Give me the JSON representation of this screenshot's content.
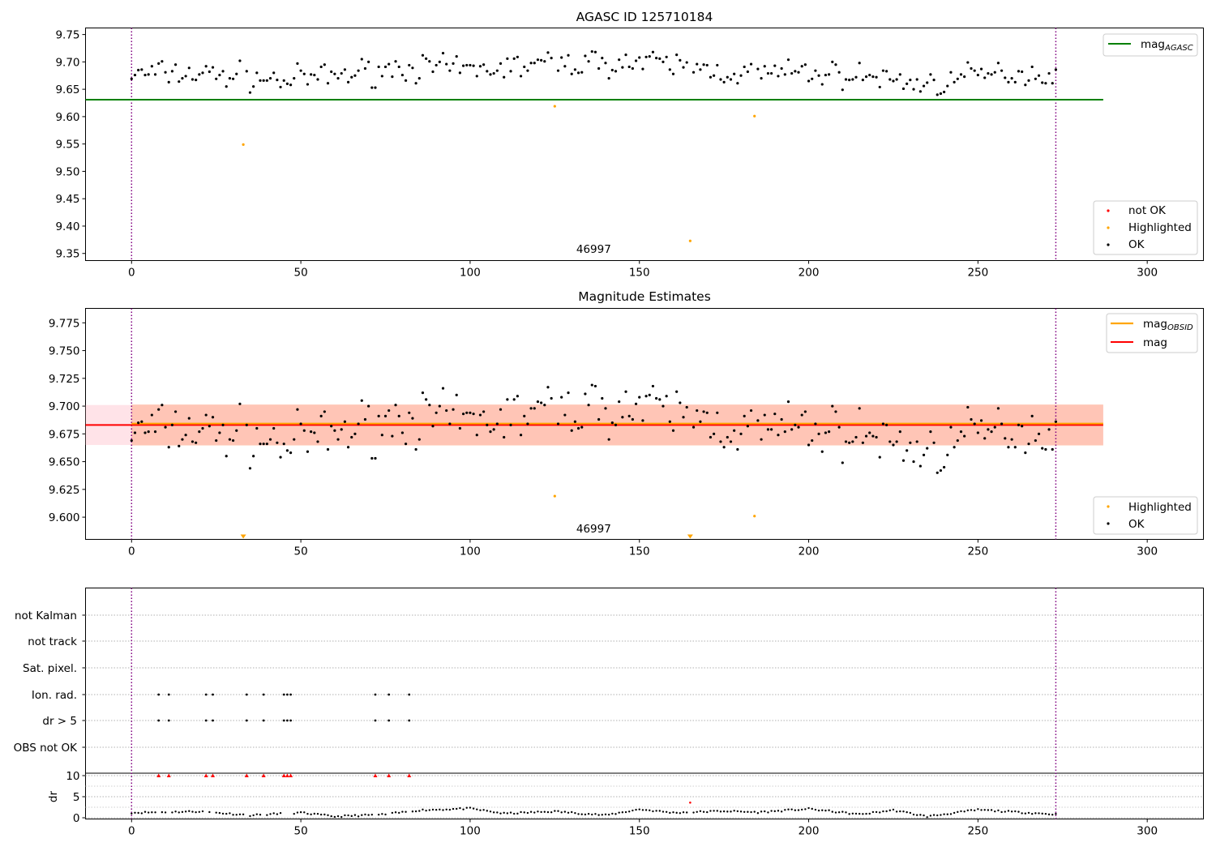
{
  "colors": {
    "ok": "#000000",
    "highlighted": "#ffa500",
    "not_ok": "#ff0000",
    "mag_agasc": "#008000",
    "mag_obsid": "#ffa500",
    "mag": "#ff0000",
    "band_mag": "#ffc0cb",
    "band_obsid": "#ffa07a",
    "obs_boundary": "#800080"
  },
  "chart_data": [
    {
      "type": "scatter",
      "title": "AGASC ID 125710184",
      "xlim": [
        -13.6,
        316.6
      ],
      "ylim": [
        9.337,
        9.762
      ],
      "xticks": [
        0,
        50,
        100,
        150,
        200,
        250,
        300
      ],
      "yticks": [
        9.35,
        9.4,
        9.45,
        9.5,
        9.55,
        9.6,
        9.65,
        9.7,
        9.75
      ],
      "ytick_decimals": 2,
      "obsid_label": "46997",
      "obsid_label_x": 136.5,
      "obs_boundaries": [
        0,
        273
      ],
      "hlines": [
        {
          "name": "mag_AGASC",
          "value": 9.631,
          "xmax": 287,
          "color_key": "mag_agasc"
        }
      ],
      "ok_noise_seed": 7,
      "series": [
        {
          "name": "not OK",
          "color_key": "not_ok",
          "x": [],
          "y": []
        },
        {
          "name": "Highlighted",
          "color_key": "highlighted",
          "x": [
            33,
            125,
            165,
            184
          ],
          "y": [
            9.549,
            9.619,
            9.373,
            9.601
          ]
        },
        {
          "name": "OK",
          "color_key": "ok",
          "n": 274,
          "profile_x": [
            0,
            10,
            30,
            45,
            60,
            80,
            100,
            120,
            140,
            160,
            180,
            200,
            220,
            235,
            250,
            260,
            273
          ],
          "profile_y": [
            9.676,
            9.68,
            9.675,
            9.665,
            9.675,
            9.69,
            9.685,
            9.695,
            9.7,
            9.695,
            9.678,
            9.68,
            9.672,
            9.658,
            9.675,
            9.68,
            9.675
          ]
        }
      ],
      "legend": [
        "mag_AGASC"
      ],
      "legend2": [
        "not OK",
        "Highlighted",
        "OK"
      ]
    },
    {
      "type": "scatter",
      "title": "Magnitude Estimates",
      "xlim": [
        -13.6,
        316.6
      ],
      "ylim": [
        9.58,
        9.788
      ],
      "xticks": [
        0,
        50,
        100,
        150,
        200,
        250,
        300
      ],
      "yticks": [
        9.6,
        9.625,
        9.65,
        9.675,
        9.7,
        9.725,
        9.75,
        9.775
      ],
      "ytick_decimals": 3,
      "obsid_label": "46997",
      "obsid_label_x": 136.5,
      "obs_boundaries": [
        0,
        273
      ],
      "hlines": [
        {
          "name": "mag",
          "value": 9.683,
          "band": [
            9.665,
            9.701
          ],
          "xmax": 287,
          "color_key": "mag"
        },
        {
          "name": "mag_OBSID",
          "value": 9.6835,
          "band": [
            9.6645,
            9.7015
          ],
          "xmin": 0,
          "xmax": 287,
          "color_key": "mag_obsid"
        }
      ],
      "series": [
        {
          "name": "Highlighted",
          "color_key": "highlighted",
          "x": [
            125,
            184
          ],
          "y": [
            9.619,
            9.601
          ],
          "offscale_x": [
            33,
            165
          ]
        },
        {
          "name": "OK",
          "color_key": "ok",
          "n": 274,
          "same_as_panel": 0
        }
      ],
      "legend": [
        "mag_OBSID",
        "mag"
      ],
      "legend2": [
        "Highlighted",
        "OK"
      ]
    },
    {
      "type": "scatter",
      "title": "",
      "xlim": [
        -13.6,
        316.6
      ],
      "xticks": [
        0,
        50,
        100,
        150,
        200,
        250,
        300
      ],
      "obs_boundaries": [
        0,
        273
      ],
      "flag_rows": [
        "not Kalman",
        "not track",
        "Sat. pixel.",
        "Ion. rad.",
        "dr > 5",
        "OBS not OK"
      ],
      "flag_points": {
        "not Kalman": [],
        "not track": [],
        "Sat. pixel.": [],
        "Ion. rad.": [
          8,
          11,
          22,
          24,
          34,
          39,
          45,
          46,
          47,
          72,
          76,
          82
        ],
        "dr > 5": [
          8,
          11,
          22,
          24,
          34,
          39,
          45,
          46,
          47,
          72,
          76,
          82
        ],
        "OBS not OK": []
      },
      "dr": {
        "ylabel": "dr",
        "ylim": [
          -0.3,
          10.4
        ],
        "yticks": [
          0,
          5,
          10
        ],
        "clip_value": 10,
        "clipped_x": [
          8,
          11,
          22,
          24,
          34,
          39,
          45,
          46,
          47,
          72,
          76,
          82
        ],
        "red_points": [
          {
            "x": 165,
            "y": 3.6
          }
        ],
        "segment_x": [
          0,
          20,
          35,
          50,
          60,
          75,
          85,
          100,
          110,
          125,
          140,
          150,
          160,
          175,
          185,
          200,
          215,
          225,
          235,
          250,
          260,
          273
        ],
        "segment_y": [
          1.2,
          1.5,
          0.6,
          1.2,
          0.3,
          0.8,
          1.8,
          2.2,
          1.0,
          1.5,
          0.6,
          2.0,
          1.2,
          1.6,
          1.3,
          2.1,
          0.8,
          1.8,
          0.3,
          1.9,
          1.4,
          0.8
        ]
      }
    }
  ]
}
